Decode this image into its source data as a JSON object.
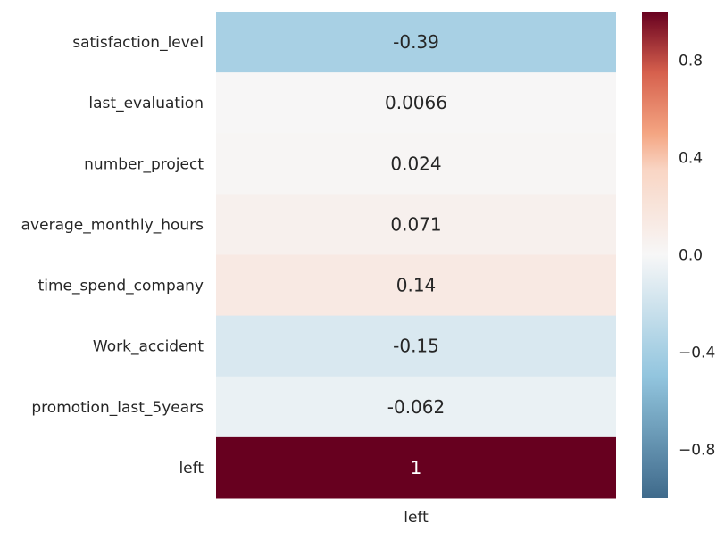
{
  "chart_data": {
    "type": "heatmap",
    "rows": [
      "satisfaction_level",
      "last_evaluation",
      "number_project",
      "average_monthly_hours",
      "time_spend_company",
      "Work_accident",
      "promotion_last_5years",
      "left"
    ],
    "columns": [
      "left"
    ],
    "values": [
      -0.39,
      0.0066,
      0.024,
      0.071,
      0.14,
      -0.15,
      -0.062,
      1
    ],
    "cell_labels": [
      "-0.39",
      "0.0066",
      "0.024",
      "0.071",
      "0.14",
      "-0.15",
      "-0.062",
      "1"
    ],
    "colorbar": {
      "range": [
        -1,
        1
      ],
      "ticks": [
        0.8,
        0.4,
        0.0,
        -0.4,
        -0.8
      ],
      "tick_labels": [
        "0.8",
        "0.4",
        "0.0",
        "−0.4",
        "−0.8"
      ],
      "colormap": "diverging blue-white-red",
      "colors": {
        "neg_end": "#3f6a8b",
        "neg_mid": "#92c5de",
        "center": "#f7f7f7",
        "pos_mid": "#f4a582",
        "pos_high": "#d6604d",
        "pos_end": "#67001f"
      }
    },
    "grid": false
  }
}
